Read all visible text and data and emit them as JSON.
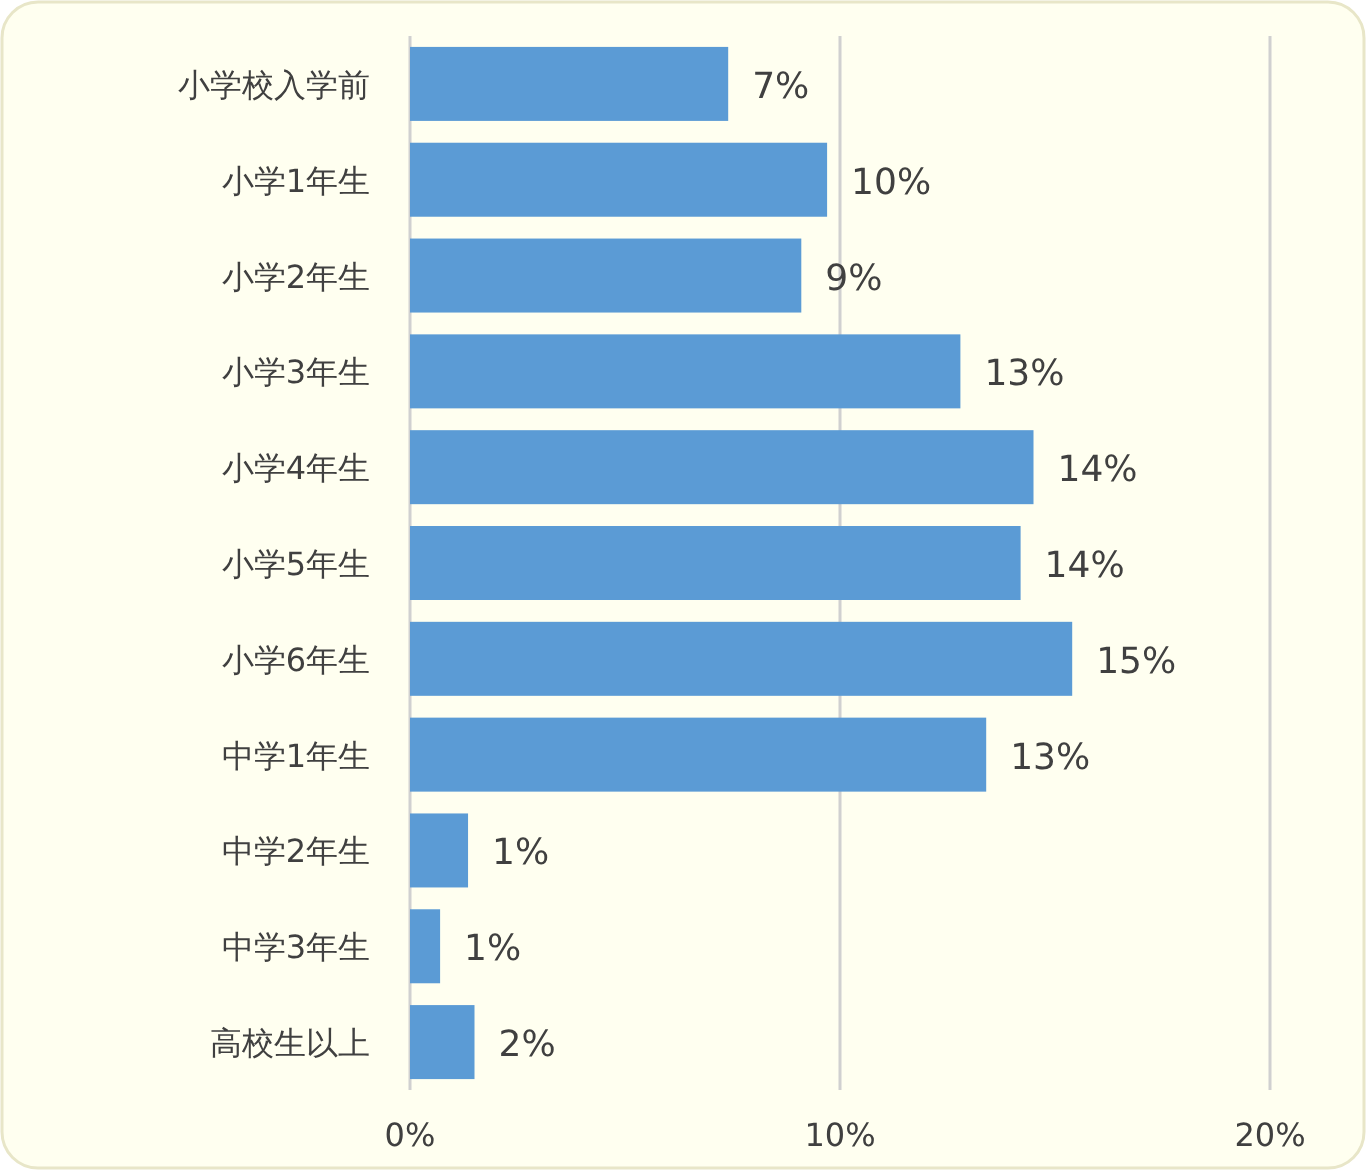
{
  "chart_data": {
    "type": "bar",
    "orientation": "horizontal",
    "categories": [
      "小学校入学前",
      "小学1年生",
      "小学2年生",
      "小学3年生",
      "小学4年生",
      "小学5年生",
      "小学6年生",
      "中学1年生",
      "中学2年生",
      "中学3年生",
      "高校生以上"
    ],
    "values": [
      7.4,
      9.7,
      9.1,
      12.8,
      14.5,
      14.2,
      15.4,
      13.4,
      1.35,
      0.7,
      1.5
    ],
    "value_labels": [
      "7%",
      "10%",
      "9%",
      "13%",
      "14%",
      "14%",
      "15%",
      "13%",
      "1%",
      "1%",
      "2%"
    ],
    "color": "#5b9bd5",
    "xlim": [
      0,
      20
    ],
    "xticks": [
      {
        "value": 0,
        "label": "0%"
      },
      {
        "value": 10,
        "label": "10%"
      },
      {
        "value": 20,
        "label": "20%"
      }
    ],
    "grid": "x"
  }
}
